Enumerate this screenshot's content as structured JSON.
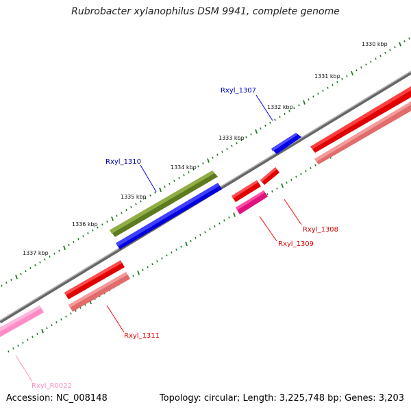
{
  "title": "Rubrobacter xylanophilus DSM 9941, complete genome",
  "footer": {
    "accession": "Accession: NC_008148",
    "summary": "Topology: circular; Length: 3,225,748 bp; Genes: 3,203"
  },
  "colors": {
    "backbone": "#8a8a8a",
    "tick": "#1f7a1f",
    "blue": "#0000ff",
    "red": "#ff0000",
    "salmon": "#f08080",
    "magenta": "#ff1493",
    "pink": "#ff9ed2",
    "olive": "#6b8e23"
  },
  "scale_labels": [
    "1330 kbp",
    "1331 kbp",
    "1332 kbp",
    "1333 kbp",
    "1334 kbp",
    "1335 kbp",
    "1336 kbp",
    "1337 kbp"
  ],
  "genes": [
    {
      "id": "Rxyl_1307",
      "color": "#0000ff"
    },
    {
      "id": "Rxyl_1308",
      "color": "#ee0000"
    },
    {
      "id": "Rxyl_1309",
      "color": "#ee0000"
    },
    {
      "id": "Rxyl_1310",
      "color": "#0000aa"
    },
    {
      "id": "Rxyl_1311",
      "color": "#ee0000"
    },
    {
      "id": "Rxyl_R0022",
      "color": "#ff8cc6"
    }
  ]
}
